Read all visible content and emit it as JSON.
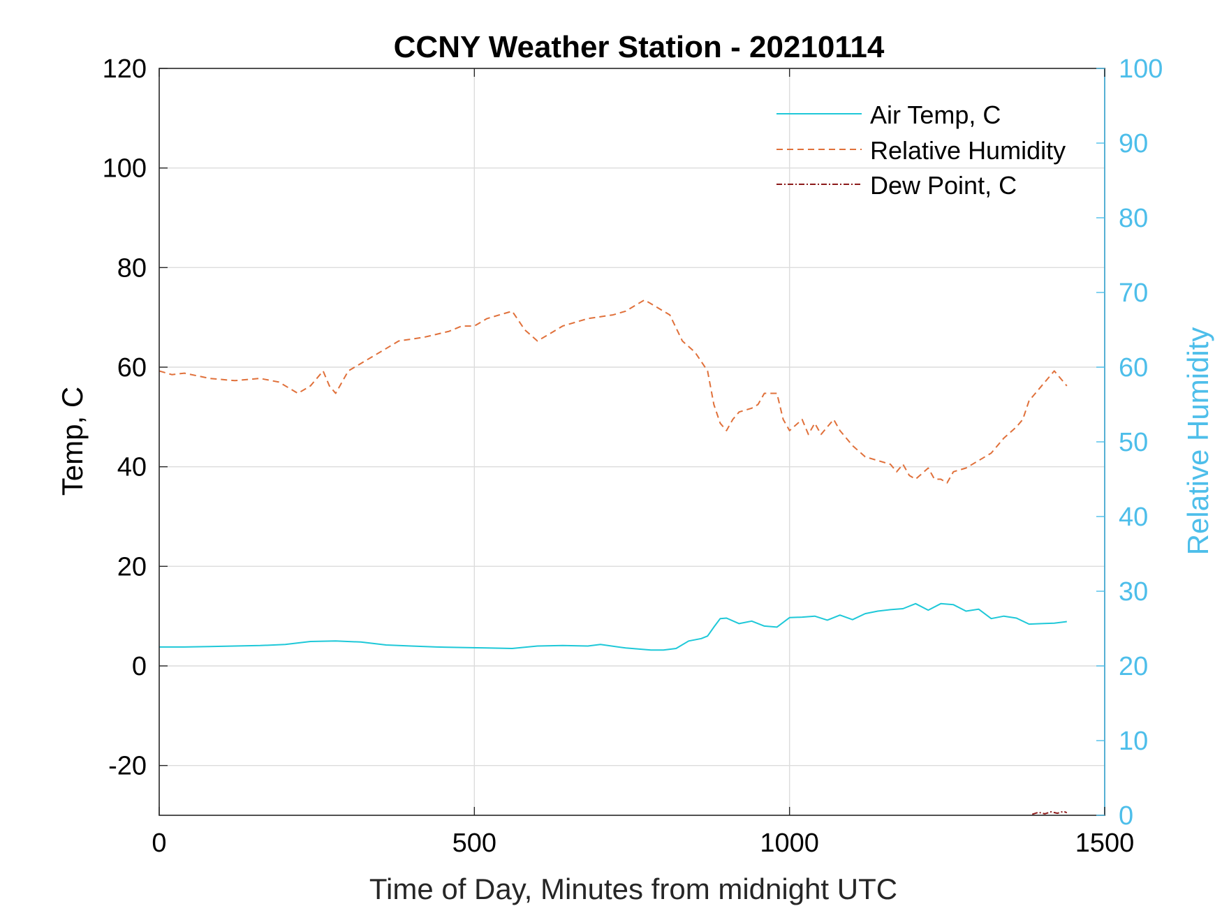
{
  "chart_data": {
    "type": "line",
    "title": "CCNY Weather Station - 20210114",
    "xlabel": "Time of Day, Minutes from midnight UTC",
    "ylabel": "Temp, C",
    "y2label": "Relative Humidity",
    "xlim": [
      0,
      1500
    ],
    "ylim": [
      -30,
      120
    ],
    "y2lim": [
      0,
      100
    ],
    "xticks": [
      "0",
      "500",
      "1000",
      "1500"
    ],
    "yticks": [
      "-20",
      "0",
      "20",
      "40",
      "60",
      "80",
      "100",
      "120"
    ],
    "y2ticks": [
      "0",
      "10",
      "20",
      "30",
      "40",
      "50",
      "60",
      "70",
      "80",
      "90",
      "100"
    ],
    "grid": true,
    "legend_position": "top-right",
    "colors": {
      "air_temp": "#1ec8d8",
      "humidity": "#e0703a",
      "dew_point": "#8b1a1a",
      "right_axis": "#4dbeea",
      "grid": "#dcdcdc"
    },
    "series": [
      {
        "name": "Air Temp, C",
        "axis": "left",
        "style": "solid",
        "x": [
          0,
          40,
          80,
          120,
          160,
          200,
          240,
          280,
          320,
          360,
          400,
          440,
          480,
          520,
          560,
          600,
          640,
          680,
          700,
          740,
          780,
          800,
          820,
          840,
          860,
          870,
          880,
          890,
          900,
          920,
          940,
          960,
          980,
          1000,
          1020,
          1040,
          1060,
          1080,
          1100,
          1120,
          1140,
          1160,
          1180,
          1200,
          1220,
          1240,
          1260,
          1280,
          1300,
          1320,
          1340,
          1360,
          1380,
          1400,
          1420,
          1440
        ],
        "y": [
          3.8,
          3.8,
          3.9,
          4.0,
          4.1,
          4.3,
          4.9,
          5.0,
          4.8,
          4.2,
          4.0,
          3.8,
          3.7,
          3.6,
          3.5,
          4.0,
          4.1,
          4.0,
          4.3,
          3.6,
          3.2,
          3.2,
          3.5,
          5.0,
          5.5,
          6.0,
          7.8,
          9.5,
          9.6,
          8.5,
          9.0,
          8.0,
          7.8,
          9.7,
          9.8,
          10.0,
          9.2,
          10.2,
          9.3,
          10.5,
          11.0,
          11.3,
          11.5,
          12.5,
          11.2,
          12.5,
          12.3,
          11.0,
          11.4,
          9.5,
          10.0,
          9.6,
          8.4,
          8.5,
          8.6,
          8.9
        ]
      },
      {
        "name": "Relative Humidity",
        "axis": "right",
        "style": "dashed",
        "x": [
          0,
          20,
          40,
          80,
          120,
          160,
          190,
          210,
          220,
          240,
          250,
          260,
          270,
          280,
          300,
          330,
          360,
          380,
          420,
          460,
          480,
          500,
          520,
          540,
          560,
          580,
          600,
          620,
          640,
          680,
          720,
          740,
          760,
          770,
          790,
          800,
          810,
          830,
          850,
          870,
          880,
          890,
          900,
          910,
          920,
          940,
          950,
          960,
          980,
          990,
          1000,
          1020,
          1030,
          1040,
          1050,
          1060,
          1070,
          1080,
          1100,
          1120,
          1140,
          1160,
          1170,
          1180,
          1190,
          1200,
          1220,
          1230,
          1240,
          1250,
          1260,
          1280,
          1300,
          1320,
          1340,
          1360,
          1370,
          1380,
          1390,
          1400,
          1420,
          1430,
          1440
        ],
        "y": [
          59.5,
          59.0,
          59.2,
          58.5,
          58.2,
          58.5,
          58.0,
          57.0,
          56.5,
          57.5,
          58.5,
          59.5,
          57.5,
          56.5,
          59.5,
          61.0,
          62.5,
          63.5,
          64.0,
          64.8,
          65.5,
          65.5,
          66.5,
          67.0,
          67.5,
          65.0,
          63.5,
          64.5,
          65.5,
          66.5,
          67.0,
          67.5,
          68.5,
          69.0,
          68.0,
          67.5,
          67.0,
          63.5,
          62.0,
          59.5,
          55.0,
          52.5,
          51.5,
          53.0,
          54.0,
          54.5,
          55.0,
          56.5,
          56.5,
          53.0,
          51.5,
          53.0,
          51.0,
          52.5,
          51.0,
          52.0,
          53.0,
          51.5,
          49.5,
          48.0,
          47.5,
          47.0,
          46.0,
          47.0,
          45.5,
          45.0,
          46.5,
          45.0,
          45.0,
          44.5,
          46.0,
          46.5,
          47.5,
          48.5,
          50.5,
          52.0,
          53.0,
          55.5,
          56.5,
          57.5,
          59.5,
          58.5,
          57.5
        ]
      },
      {
        "name": "Dew Point, C",
        "axis": "left",
        "style": "dash-dot",
        "x": [
          1385,
          1395,
          1405,
          1415,
          1425,
          1435,
          1440
        ],
        "y": [
          -29.8,
          -29.4,
          -29.7,
          -29.3,
          -29.6,
          -29.2,
          -29.5
        ]
      }
    ]
  }
}
